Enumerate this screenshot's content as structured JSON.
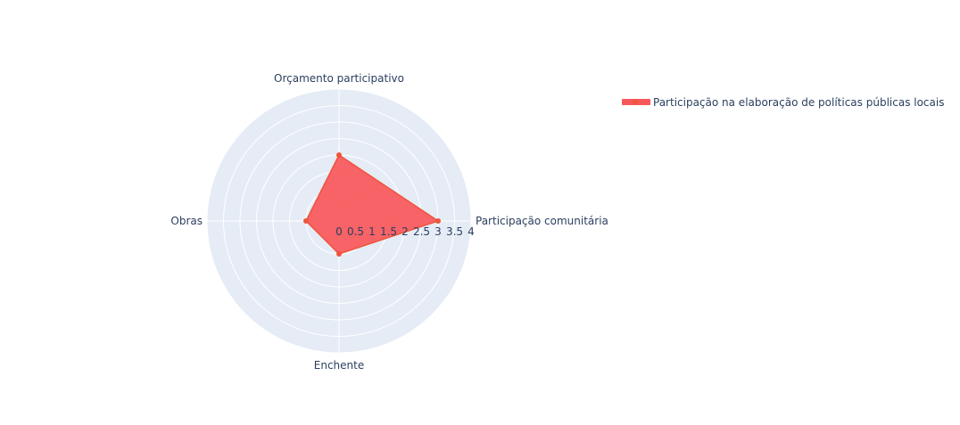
{
  "chart_data": {
    "type": "radar",
    "categories": [
      "Participação comunitária",
      "Orçamento participativo",
      "Obras",
      "Enchente"
    ],
    "series": [
      {
        "name": "Participação na elaboração de políticas públicas locais",
        "values": [
          3,
          2,
          1,
          1
        ],
        "color": "#ef553b"
      }
    ],
    "radial_ticks": [
      "0",
      "0.5",
      "1",
      "1.5",
      "2",
      "2.5",
      "3",
      "3.5",
      "4"
    ],
    "radial_range": [
      0,
      4
    ],
    "legend_position": "top-right"
  },
  "colors": {
    "polar_bg": "#e5ecf6",
    "grid": "#ffffff",
    "series_fill": "#f8575a",
    "series_line": "#ef553b",
    "text": "#2a3f5f"
  }
}
